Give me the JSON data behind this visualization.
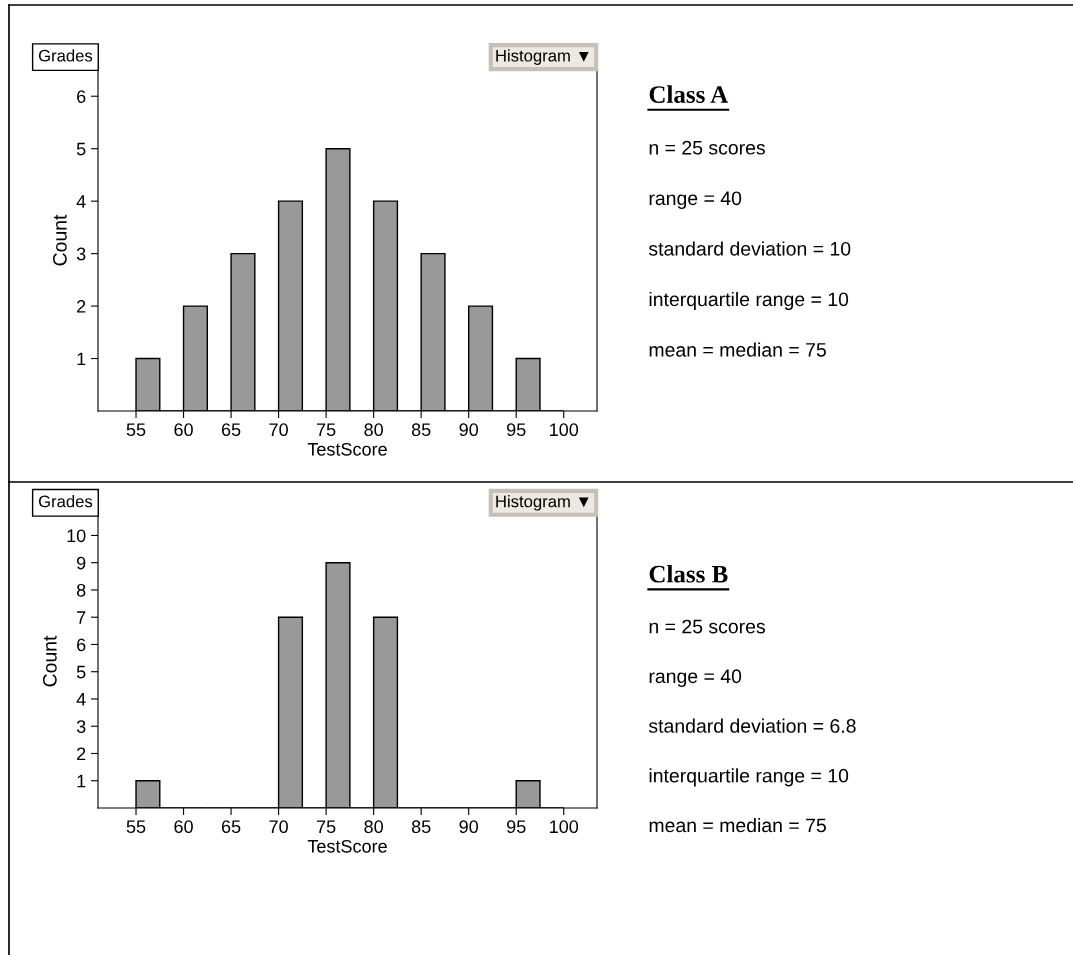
{
  "chart_data": [
    {
      "type": "histogram",
      "xlabel": "TestScore",
      "ylabel": "Count",
      "color": "#999999",
      "annotations": [
        "Grades",
        "Histogram ▼"
      ],
      "bins": [
        55,
        57.5,
        60,
        62.5,
        65,
        67.5,
        70,
        72.5,
        75,
        77.5,
        80,
        82.5,
        85,
        87.5,
        90,
        92.5,
        95,
        97.5,
        100
      ],
      "values": [
        1,
        0,
        2,
        0,
        3,
        0,
        4,
        0,
        5,
        0,
        4,
        0,
        3,
        0,
        2,
        0,
        1,
        0
      ],
      "xlim": [
        51,
        103.5
      ],
      "xticks": [
        55,
        60,
        65,
        70,
        75,
        80,
        85,
        90,
        95,
        100
      ],
      "ylim": [
        0,
        6.5
      ],
      "yticks": [
        1,
        2,
        3,
        4,
        5,
        6
      ],
      "grid": false
    },
    {
      "type": "other",
      "title": "Class A",
      "annotations": [
        "n = 25 scores",
        "range = 40",
        "standard deviation = 10",
        "interquartile range = 10",
        "mean = median = 75"
      ]
    },
    {
      "type": "histogram",
      "xlabel": "TestScore",
      "ylabel": "Count",
      "color": "#999999",
      "annotations": [
        "Grades",
        "Histogram ▼"
      ],
      "bins": [
        55,
        57.5,
        60,
        62.5,
        65,
        67.5,
        70,
        72.5,
        75,
        77.5,
        80,
        82.5,
        85,
        87.5,
        90,
        92.5,
        95,
        97.5,
        100
      ],
      "values": [
        1,
        0,
        0,
        0,
        0,
        0,
        7,
        0,
        9,
        0,
        7,
        0,
        0,
        0,
        0,
        0,
        1,
        0
      ],
      "xlim": [
        51,
        103.5
      ],
      "xticks": [
        55,
        60,
        65,
        70,
        75,
        80,
        85,
        90,
        95,
        100
      ],
      "ylim": [
        0,
        10.75
      ],
      "yticks": [
        1,
        2,
        3,
        4,
        5,
        6,
        7,
        8,
        9,
        10
      ],
      "grid": false
    },
    {
      "type": "other",
      "title": "Class B",
      "annotations": [
        "n = 25 scores",
        "range = 40",
        "standard deviation = 6.8",
        "interquartile range = 10",
        "mean = median = 75"
      ]
    }
  ]
}
